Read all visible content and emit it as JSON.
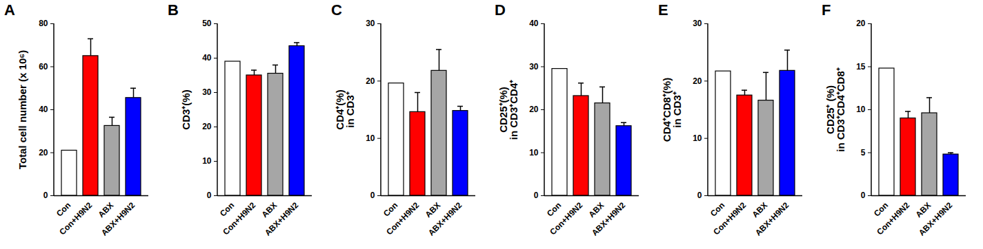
{
  "chart_data": [
    {
      "type": "bar",
      "title": "A",
      "ylabel": "Total cell number (x 10⁶)",
      "categories": [
        "Con",
        "Con+H9N2",
        "ABX",
        "ABX+H9N2"
      ],
      "values": [
        21,
        65,
        32.5,
        45.5
      ],
      "errors": [
        null,
        8,
        4,
        4.5
      ],
      "colors": [
        "#ffffff",
        "#ff0000",
        "#a6a6a6",
        "#0000ff"
      ],
      "ylim": [
        0,
        80
      ],
      "yticks": [
        0,
        20,
        40,
        60,
        80
      ]
    },
    {
      "type": "bar",
      "title": "B",
      "ylabel": "CD3⁺(%)",
      "categories": [
        "Con",
        "Con+H9N2",
        "ABX",
        "ABX+H9N2"
      ],
      "values": [
        39,
        35,
        35.5,
        43.5
      ],
      "errors": [
        null,
        1.5,
        2.5,
        1
      ],
      "colors": [
        "#ffffff",
        "#ff0000",
        "#a6a6a6",
        "#0000ff"
      ],
      "ylim": [
        0,
        50
      ],
      "yticks": [
        0,
        10,
        20,
        30,
        40,
        50
      ]
    },
    {
      "type": "bar",
      "title": "C",
      "ylabel": "CD4⁺(%)\nin CD3⁺",
      "categories": [
        "Con",
        "Con+H9N2",
        "ABX",
        "ABX+H9N2"
      ],
      "values": [
        19.6,
        14.6,
        21.8,
        14.8
      ],
      "errors": [
        null,
        3.4,
        3.7,
        0.8
      ],
      "colors": [
        "#ffffff",
        "#ff0000",
        "#a6a6a6",
        "#0000ff"
      ],
      "ylim": [
        0,
        30
      ],
      "yticks": [
        0,
        10,
        20,
        30
      ]
    },
    {
      "type": "bar",
      "title": "D",
      "ylabel": "CD25⁺(%)\nin CD3⁺CD4⁺",
      "categories": [
        "Con",
        "Con+H9N2",
        "ABX",
        "ABX+H9N2"
      ],
      "values": [
        29.5,
        23.2,
        21.5,
        16.2
      ],
      "errors": [
        null,
        3,
        3.8,
        0.8
      ],
      "colors": [
        "#ffffff",
        "#ff0000",
        "#a6a6a6",
        "#0000ff"
      ],
      "ylim": [
        0,
        40
      ],
      "yticks": [
        0,
        10,
        20,
        30,
        40
      ]
    },
    {
      "type": "bar",
      "title": "E",
      "ylabel": "CD4⁺CD8⁺(%)\nin CD3⁺",
      "categories": [
        "Con",
        "Con+H9N2",
        "ABX",
        "ABX+H9N2"
      ],
      "values": [
        21.7,
        17.5,
        16.6,
        21.8
      ],
      "errors": [
        null,
        0.9,
        4.9,
        3.6
      ],
      "colors": [
        "#ffffff",
        "#ff0000",
        "#a6a6a6",
        "#0000ff"
      ],
      "ylim": [
        0,
        30
      ],
      "yticks": [
        0,
        10,
        20,
        30
      ]
    },
    {
      "type": "bar",
      "title": "F",
      "ylabel": "CD25⁺ (%)\nin CD3⁺CD4⁺CD8⁺",
      "categories": [
        "Con",
        "Con+H9N2",
        "ABX",
        "ABX+H9N2"
      ],
      "values": [
        14.8,
        9,
        9.6,
        4.8
      ],
      "errors": [
        null,
        0.8,
        1.8,
        0.2
      ],
      "colors": [
        "#ffffff",
        "#ff0000",
        "#a6a6a6",
        "#0000ff"
      ],
      "ylim": [
        0,
        20
      ],
      "yticks": [
        0,
        5,
        10,
        15,
        20
      ]
    }
  ]
}
